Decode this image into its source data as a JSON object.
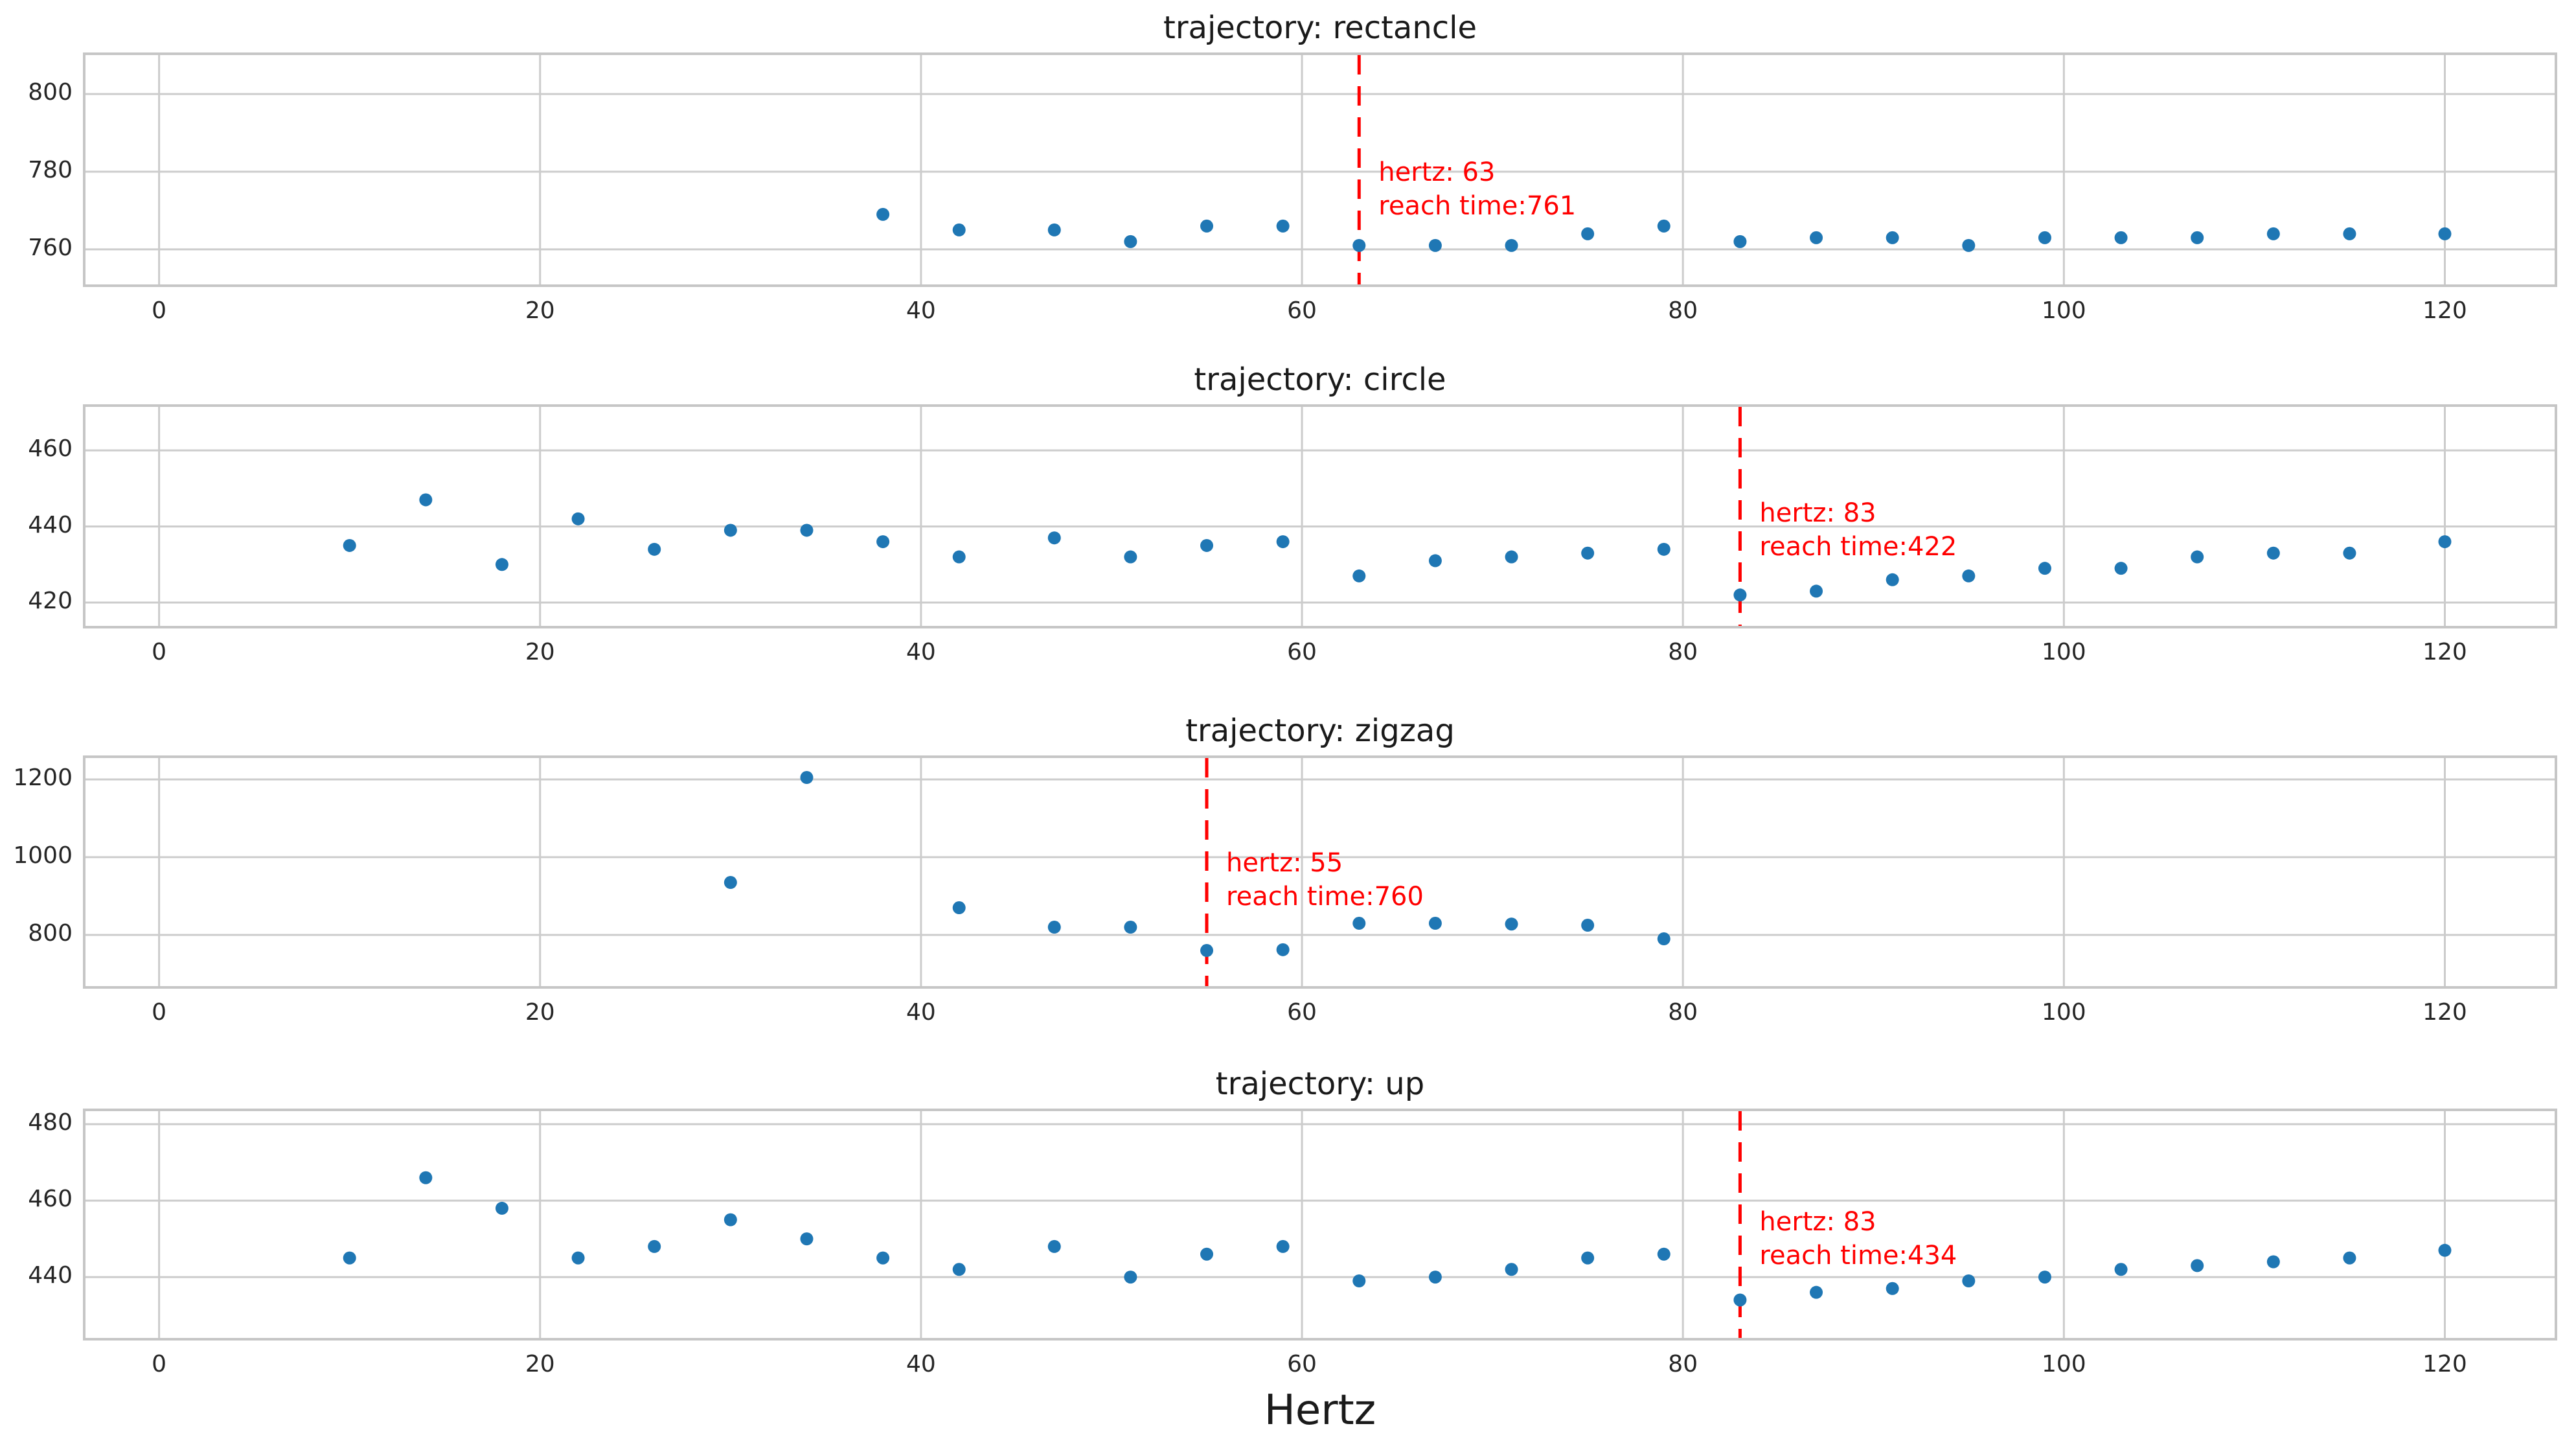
{
  "figure": {
    "xlabel": "Hertz",
    "colors": {
      "point": "#1f77b4",
      "threshold": "#ff0000",
      "grid": "#cccccc",
      "border": "#c6c6c6",
      "text": "#262626",
      "background": "#ffffff"
    }
  },
  "chart_data": [
    {
      "type": "scatter",
      "name": "rectancle",
      "title": "trajectory: rectancle",
      "xlabel": "",
      "x": [
        38,
        42,
        47,
        51,
        55,
        59,
        63,
        67,
        71,
        75,
        79,
        83,
        87,
        91,
        95,
        99,
        103,
        107,
        111,
        115,
        120
      ],
      "y": [
        769,
        765,
        765,
        762,
        766,
        766,
        761,
        761,
        761,
        764,
        766,
        762,
        763,
        763,
        761,
        763,
        763,
        763,
        764,
        764,
        764
      ],
      "threshold_hz": 63,
      "reach_time": 761,
      "annotation_lines": [
        "hertz: 63",
        "reach time:761"
      ],
      "xticks": [
        0,
        20,
        40,
        60,
        80,
        100,
        120
      ],
      "yticks": [
        760,
        780,
        800
      ],
      "xlim": [
        -4,
        125.9
      ],
      "ylim": [
        750.3,
        810.7
      ],
      "grid": true,
      "legend": "none"
    },
    {
      "type": "scatter",
      "name": "circle",
      "title": "trajectory: circle",
      "xlabel": "",
      "x": [
        10,
        14,
        18,
        22,
        26,
        30,
        34,
        38,
        42,
        47,
        51,
        55,
        59,
        63,
        67,
        71,
        75,
        79,
        83,
        87,
        91,
        95,
        99,
        103,
        107,
        111,
        115,
        120
      ],
      "y": [
        435,
        447,
        430,
        442,
        434,
        439,
        439,
        436,
        432,
        437,
        432,
        435,
        436,
        427,
        431,
        432,
        433,
        434,
        422,
        423,
        426,
        427,
        429,
        429,
        432,
        433,
        433,
        436
      ],
      "threshold_hz": 83,
      "reach_time": 422,
      "annotation_lines": [
        "hertz: 83",
        "reach time:422"
      ],
      "xticks": [
        0,
        20,
        40,
        60,
        80,
        100,
        120
      ],
      "yticks": [
        420,
        440,
        460
      ],
      "xlim": [
        -4,
        125.9
      ],
      "ylim": [
        413.2,
        472.1
      ],
      "grid": true,
      "legend": "none"
    },
    {
      "type": "scatter",
      "name": "zigzag",
      "title": "trajectory: zigzag",
      "xlabel": "",
      "x": [
        30,
        34,
        42,
        47,
        51,
        55,
        59,
        63,
        67,
        71,
        75,
        79
      ],
      "y": [
        935,
        1205,
        870,
        820,
        820,
        760,
        762,
        830,
        830,
        828,
        825,
        790
      ],
      "threshold_hz": 55,
      "reach_time": 760,
      "annotation_lines": [
        "hertz: 55",
        "reach time:760"
      ],
      "xticks": [
        0,
        20,
        40,
        60,
        80,
        100,
        120
      ],
      "yticks": [
        800,
        1000,
        1200
      ],
      "xlim": [
        -4,
        125.9
      ],
      "ylim": [
        661.7,
        1261.7
      ],
      "grid": true,
      "legend": "none"
    },
    {
      "type": "scatter",
      "name": "up",
      "title": "trajectory: up",
      "xlabel": "Hertz",
      "x": [
        10,
        14,
        18,
        22,
        26,
        30,
        34,
        38,
        42,
        47,
        51,
        55,
        59,
        63,
        67,
        71,
        75,
        79,
        83,
        87,
        91,
        95,
        99,
        103,
        107,
        111,
        115,
        120
      ],
      "y": [
        445,
        466,
        458,
        445,
        448,
        455,
        450,
        445,
        442,
        448,
        440,
        446,
        448,
        439,
        440,
        442,
        445,
        446,
        434,
        436,
        437,
        439,
        440,
        442,
        443,
        444,
        445,
        447
      ],
      "threshold_hz": 83,
      "reach_time": 434,
      "annotation_lines": [
        "hertz: 83",
        "reach time:434"
      ],
      "xticks": [
        0,
        20,
        40,
        60,
        80,
        100,
        120
      ],
      "yticks": [
        440,
        460,
        480
      ],
      "xlim": [
        -4,
        125.9
      ],
      "ylim": [
        423.4,
        484.1
      ],
      "grid": true,
      "legend": "none"
    }
  ]
}
